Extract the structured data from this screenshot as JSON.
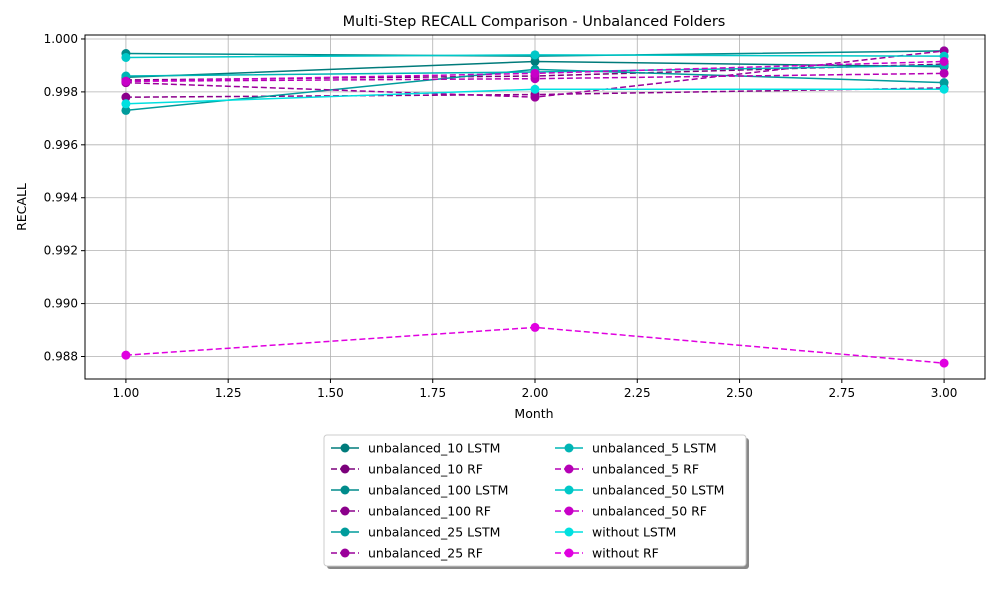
{
  "chart_data": {
    "type": "line",
    "title": "Multi-Step RECALL Comparison - Unbalanced Folders",
    "xlabel": "Month",
    "ylabel": "RECALL",
    "xlim": [
      0.9,
      3.1
    ],
    "ylim": [
      0.98715,
      1.00015
    ],
    "xticks": [
      1.0,
      1.25,
      1.5,
      1.75,
      2.0,
      2.25,
      2.5,
      2.75,
      3.0
    ],
    "xtick_labels": [
      "1.00",
      "1.25",
      "1.50",
      "1.75",
      "2.00",
      "2.25",
      "2.50",
      "2.75",
      "3.00"
    ],
    "yticks": [
      0.988,
      0.99,
      0.992,
      0.994,
      0.996,
      0.998,
      1.0
    ],
    "ytick_labels": [
      "0.988",
      "0.990",
      "0.992",
      "0.994",
      "0.996",
      "0.998",
      "1.000"
    ],
    "grid": true,
    "legend_position": "bottom-center",
    "x": [
      1,
      2,
      3
    ],
    "series": [
      {
        "name": "unbalanced_10 LSTM",
        "style": "solid",
        "color": "#007b7b",
        "values": [
          0.99855,
          0.99915,
          0.99895
        ]
      },
      {
        "name": "unbalanced_10 RF",
        "style": "dashed",
        "color": "#7b007b",
        "values": [
          0.99845,
          0.9986,
          0.99905
        ]
      },
      {
        "name": "unbalanced_100 LSTM",
        "style": "solid",
        "color": "#008b8b",
        "values": [
          0.99945,
          0.99935,
          0.99955
        ]
      },
      {
        "name": "unbalanced_100 RF",
        "style": "dashed",
        "color": "#8b008b",
        "values": [
          0.9978,
          0.9979,
          0.99815
        ]
      },
      {
        "name": "unbalanced_25 LSTM",
        "style": "solid",
        "color": "#009b9b",
        "values": [
          0.9973,
          0.99885,
          0.99835
        ]
      },
      {
        "name": "unbalanced_25 RF",
        "style": "dashed",
        "color": "#9b009b",
        "values": [
          0.99835,
          0.9978,
          0.99955
        ]
      },
      {
        "name": "unbalanced_5 LSTM",
        "style": "solid",
        "color": "#00b5b5",
        "values": [
          0.9986,
          0.99875,
          0.999
        ]
      },
      {
        "name": "unbalanced_5 RF",
        "style": "dashed",
        "color": "#b500b5",
        "values": [
          0.9984,
          0.9985,
          0.9987
        ]
      },
      {
        "name": "unbalanced_50 LSTM",
        "style": "solid",
        "color": "#00c8c8",
        "values": [
          0.9993,
          0.9994,
          0.99935
        ]
      },
      {
        "name": "unbalanced_50 RF",
        "style": "dashed",
        "color": "#c800c8",
        "values": [
          0.9984,
          0.9987,
          0.99915
        ]
      },
      {
        "name": "without LSTM",
        "style": "solid",
        "color": "#00e0e0",
        "values": [
          0.99755,
          0.9981,
          0.9981
        ]
      },
      {
        "name": "without RF",
        "style": "dashed",
        "color": "#e000e0",
        "values": [
          0.98805,
          0.9891,
          0.98775
        ]
      }
    ]
  }
}
